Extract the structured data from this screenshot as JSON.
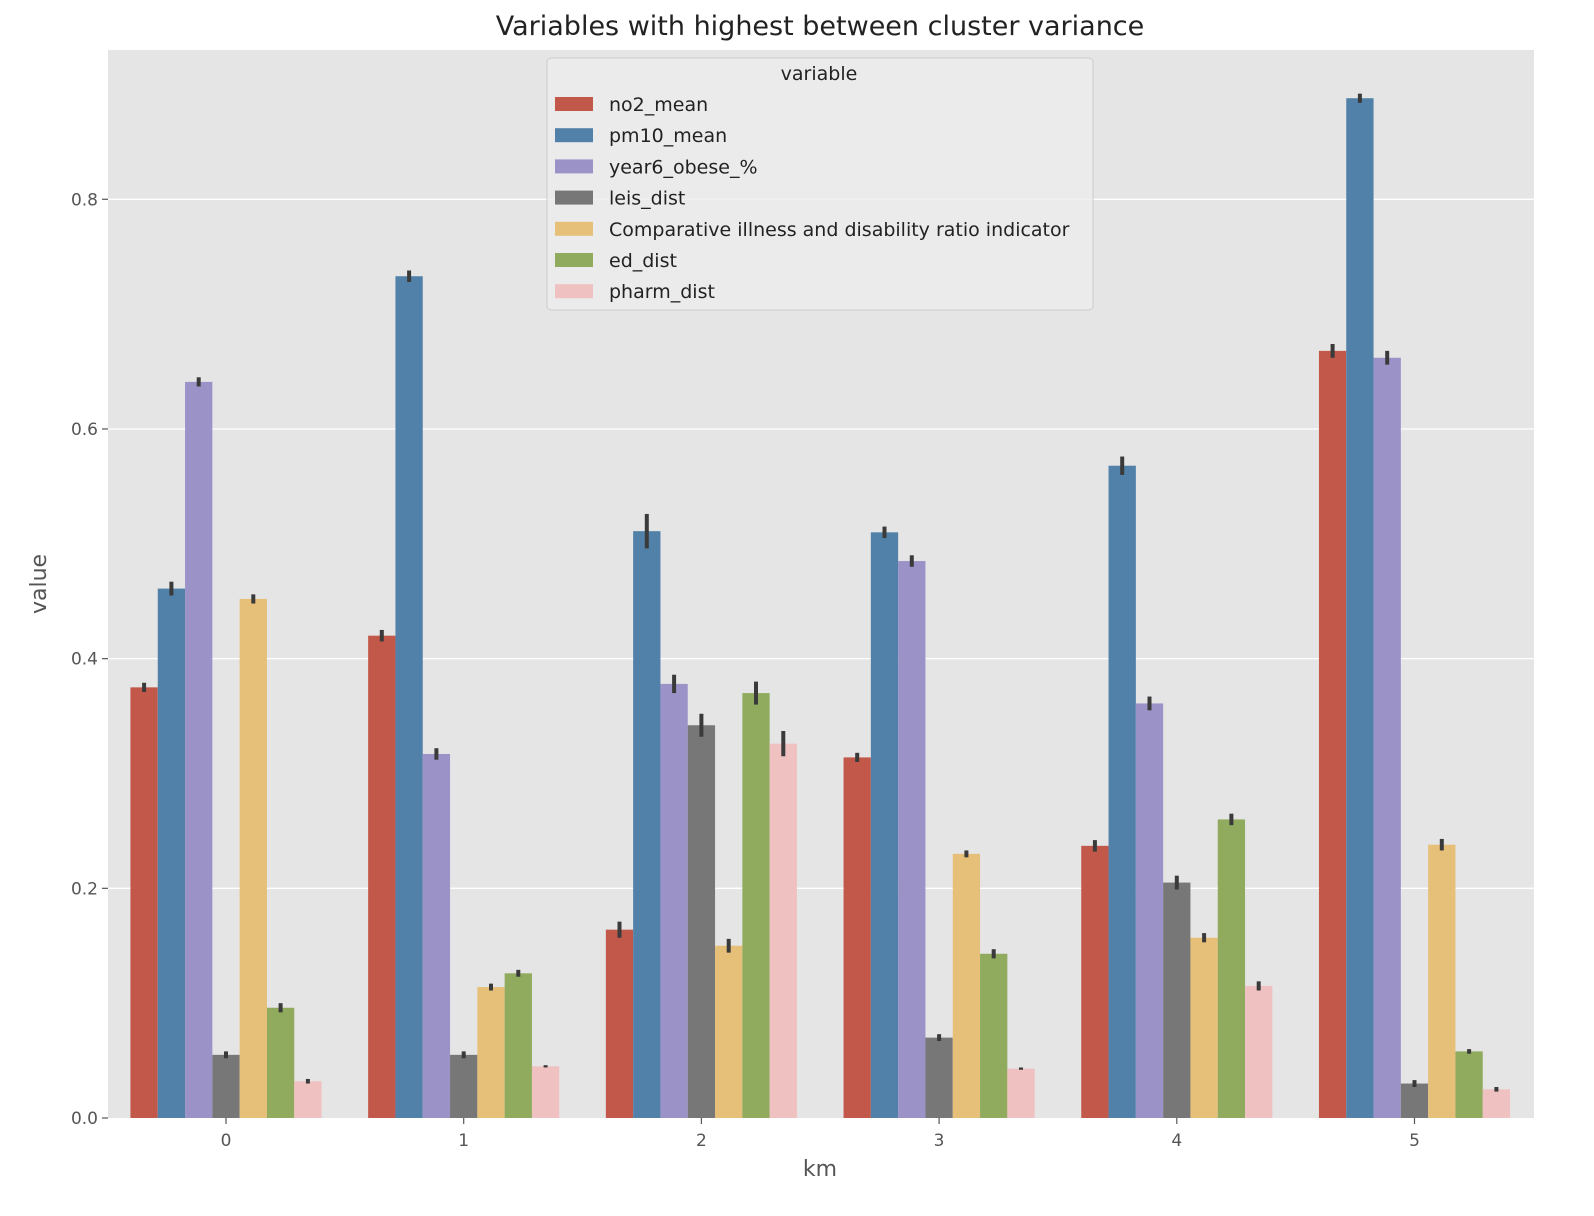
{
  "chart_data": {
    "type": "bar",
    "title": "Variables with highest between cluster variance",
    "xlabel": "km",
    "ylabel": "value",
    "categories": [
      "0",
      "1",
      "2",
      "3",
      "4",
      "5"
    ],
    "ylim": [
      0,
      0.93
    ],
    "yticks": [
      0.0,
      0.2,
      0.4,
      0.6,
      0.8
    ],
    "ytick_labels": [
      "0.0",
      "0.2",
      "0.4",
      "0.6",
      "0.8"
    ],
    "grid": true,
    "legend": {
      "title": "variable",
      "placement": "top-center"
    },
    "series": [
      {
        "name": "no2_mean",
        "color": "#c1584a",
        "values": [
          0.375,
          0.42,
          0.164,
          0.314,
          0.237,
          0.668
        ],
        "err": [
          0.004,
          0.005,
          0.007,
          0.004,
          0.005,
          0.006
        ]
      },
      {
        "name": "pm10_mean",
        "color": "#5181a8",
        "values": [
          0.461,
          0.733,
          0.511,
          0.51,
          0.568,
          0.888
        ],
        "err": [
          0.006,
          0.005,
          0.015,
          0.005,
          0.008,
          0.004
        ]
      },
      {
        "name": "year6_obese_%",
        "color": "#9b93c8",
        "values": [
          0.641,
          0.317,
          0.378,
          0.485,
          0.361,
          0.662
        ],
        "err": [
          0.004,
          0.005,
          0.008,
          0.005,
          0.006,
          0.006
        ]
      },
      {
        "name": "leis_dist",
        "color": "#777777",
        "values": [
          0.055,
          0.055,
          0.342,
          0.07,
          0.205,
          0.03
        ],
        "err": [
          0.003,
          0.003,
          0.01,
          0.003,
          0.006,
          0.003
        ]
      },
      {
        "name": "Comparative illness and disability ratio indicator",
        "color": "#e6bf78",
        "values": [
          0.452,
          0.114,
          0.15,
          0.23,
          0.157,
          0.238
        ],
        "err": [
          0.004,
          0.003,
          0.006,
          0.003,
          0.004,
          0.005
        ]
      },
      {
        "name": "ed_dist",
        "color": "#90ab5e",
        "values": [
          0.096,
          0.126,
          0.37,
          0.143,
          0.26,
          0.058
        ],
        "err": [
          0.004,
          0.003,
          0.01,
          0.004,
          0.005,
          0.002
        ]
      },
      {
        "name": "pharm_dist",
        "color": "#f0c1c1",
        "values": [
          0.032,
          0.045,
          0.326,
          0.043,
          0.115,
          0.025
        ],
        "err": [
          0.002,
          0.001,
          0.011,
          0.001,
          0.004,
          0.002
        ]
      }
    ]
  }
}
